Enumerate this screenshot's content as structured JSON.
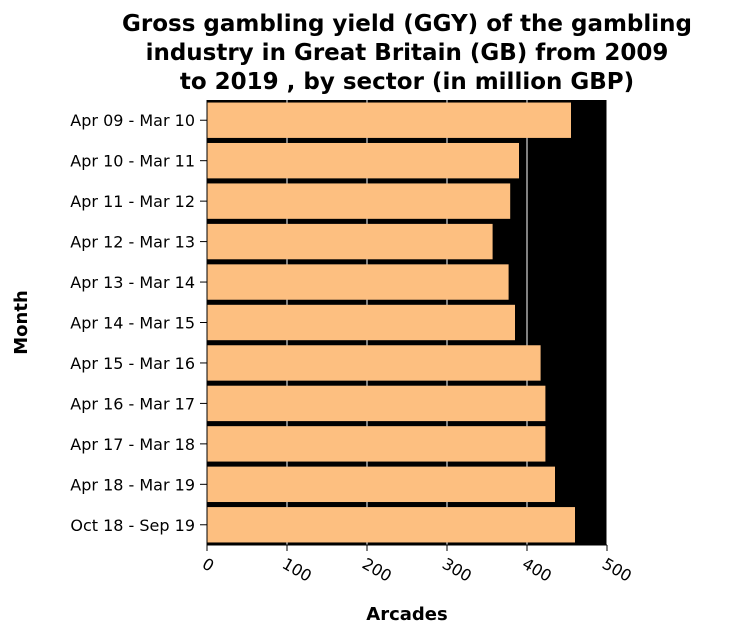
{
  "chart_data": {
    "type": "bar",
    "orientation": "horizontal",
    "title_lines": [
      "Gross gambling yield (GGY) of the gambling",
      "industry in Great Britain (GB) from 2009",
      "to 2019 , by sector (in million GBP)"
    ],
    "xlabel": "Arcades",
    "ylabel": "Month",
    "xlim": [
      0,
      500
    ],
    "xticks": [
      "0",
      "100",
      "200",
      "300",
      "400",
      "500"
    ],
    "categories": [
      "Apr 09 - Mar 10",
      "Apr 10 - Mar 11",
      "Apr 11 - Mar 12",
      "Apr 12 - Mar 13",
      "Apr 13 - Mar 14",
      "Apr 14 - Mar 15",
      "Apr 15 - Mar 16",
      "Apr 16 - Mar 17",
      "Apr 17 - Mar 18",
      "Apr 18 - Mar 19",
      "Oct 18 - Sep 19"
    ],
    "values": [
      455,
      390,
      379,
      357,
      377,
      385,
      417,
      423,
      423,
      435,
      460
    ],
    "colors": {
      "plot_background": "#000000",
      "bar": "#fdbf80",
      "grid": "#ffffff",
      "text": "#000000"
    },
    "grid": true
  }
}
